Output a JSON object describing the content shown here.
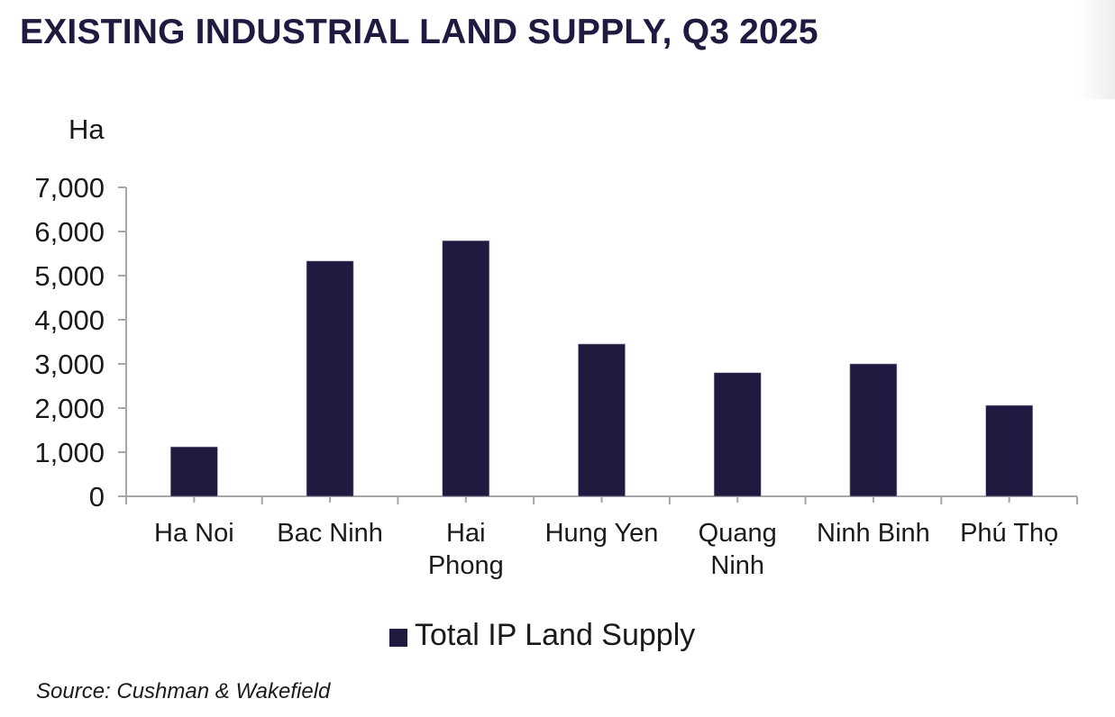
{
  "chart_data": {
    "type": "bar",
    "title": "EXISTING INDUSTRIAL LAND SUPPLY, Q3 2025",
    "ylabel": "Ha",
    "xlabel": "",
    "categories": [
      "Ha Noi",
      "Bac Ninh",
      "Hai Phong",
      "Hung Yen",
      "Quang Ninh",
      "Ninh Binh",
      "Phú Thọ"
    ],
    "category_lines": [
      [
        "Ha Noi"
      ],
      [
        "Bac Ninh"
      ],
      [
        "Hai",
        "Phong"
      ],
      [
        "Hung Yen"
      ],
      [
        "Quang",
        "Ninh"
      ],
      [
        "Ninh Binh"
      ],
      [
        "Phú Thọ"
      ]
    ],
    "series": [
      {
        "name": "Total IP Land Supply",
        "values": [
          1120,
          5330,
          5790,
          3450,
          2800,
          3000,
          2060
        ],
        "color": "#1f1a40"
      }
    ],
    "ylim": [
      0,
      7000
    ],
    "yticks": [
      0,
      1000,
      2000,
      3000,
      4000,
      5000,
      6000,
      7000
    ],
    "ytick_labels": [
      "0",
      "1,000",
      "2,000",
      "3,000",
      "4,000",
      "5,000",
      "6,000",
      "7,000"
    ],
    "grid": false,
    "legend_position": "bottom"
  },
  "source": "Source: Cushman & Wakefield",
  "colors": {
    "title": "#1f1a40",
    "bar": "#1f1a40",
    "axis": "#a6a6a6"
  }
}
